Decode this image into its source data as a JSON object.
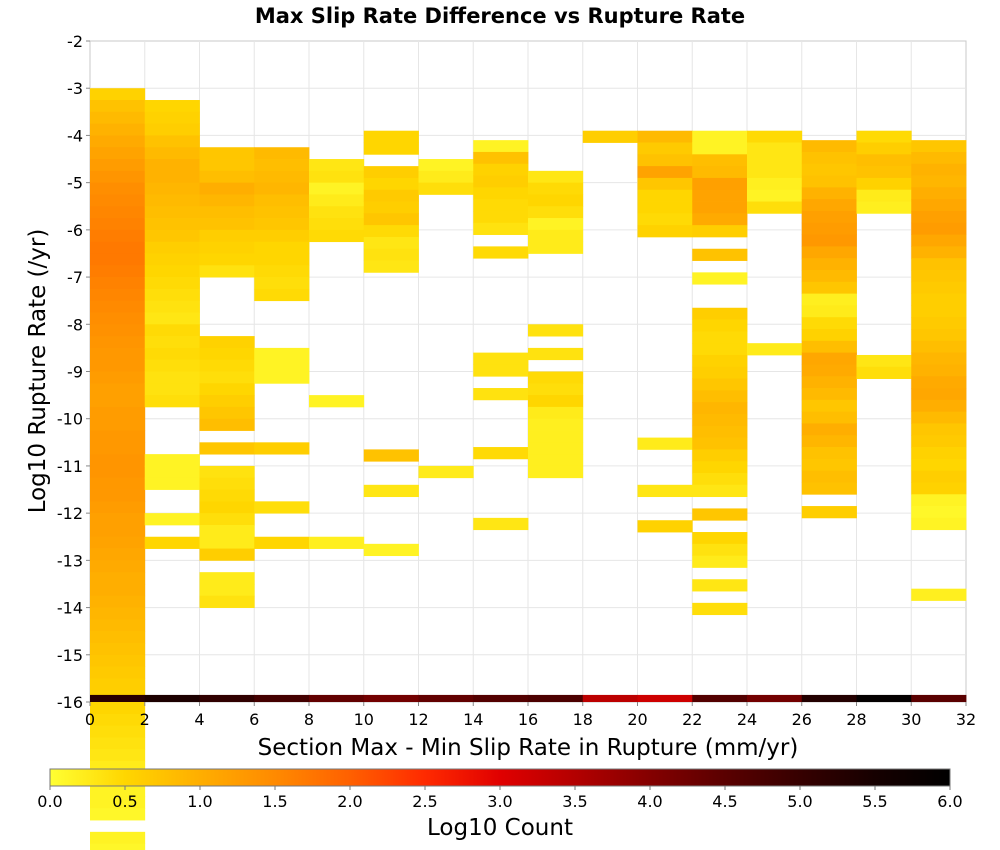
{
  "chart_data": {
    "type": "heatmap",
    "title": "Max Slip Rate Difference vs Rupture Rate",
    "xlabel": "Section Max - Min Slip Rate in Rupture (mm/yr)",
    "ylabel": "Log10 Rupture Rate (/yr)",
    "xlim": [
      0,
      32
    ],
    "ylim": [
      -16,
      -2
    ],
    "x_ticks": [
      "0",
      "2",
      "4",
      "6",
      "8",
      "10",
      "12",
      "14",
      "16",
      "18",
      "20",
      "22",
      "24",
      "26",
      "28",
      "30",
      "32"
    ],
    "y_ticks": [
      "-2",
      "-3",
      "-4",
      "-5",
      "-6",
      "-7",
      "-8",
      "-9",
      "-10",
      "-11",
      "-12",
      "-13",
      "-14",
      "-15",
      "-16"
    ],
    "x_bin_width": 2,
    "y_bin_height": 0.25,
    "grid": true,
    "colorbar": {
      "label": "Log10 Count",
      "range": [
        0,
        6
      ],
      "ticks": [
        "0.0",
        "0.5",
        "1.0",
        "1.5",
        "2.0",
        "2.5",
        "3.0",
        "3.5",
        "4.0",
        "4.5",
        "5.0",
        "5.5",
        "6.0"
      ],
      "colors": [
        "#ffff33",
        "#ffd600",
        "#ffae00",
        "#ff8a00",
        "#ff6000",
        "#ff2a00",
        "#e00000",
        "#b30000",
        "#840000",
        "#5a0000",
        "#360000",
        "#160000",
        "#000000"
      ]
    },
    "columns": [
      {
        "x": 0,
        "y_top": -3.0,
        "values": [
          0.55,
          0.75,
          0.85,
          0.95,
          1.05,
          1.15,
          1.25,
          1.35,
          1.45,
          1.5,
          1.55,
          1.6,
          1.65,
          1.7,
          1.7,
          1.65,
          1.6,
          1.55,
          1.5,
          1.45,
          1.4,
          1.35,
          1.3,
          1.3,
          1.25,
          1.2,
          1.2,
          1.25,
          1.25,
          1.3,
          1.3,
          1.35,
          1.35,
          1.3,
          1.3,
          1.25,
          1.2,
          1.2,
          1.15,
          1.1,
          1.05,
          1.0,
          1.0,
          0.95,
          0.9,
          0.85,
          0.8,
          0.75,
          0.7,
          0.65,
          0.6,
          0.55,
          0.5,
          0.45,
          0.4,
          0.35,
          0.3,
          0.25,
          0.2,
          0.15,
          0.15,
          0.1,
          null,
          0.15,
          0.1,
          0.1
        ]
      },
      {
        "x": 2,
        "y_top": -3.25,
        "values": [
          0.5,
          0.55,
          0.6,
          0.75,
          0.85,
          0.95,
          0.95,
          0.9,
          0.85,
          0.8,
          0.75,
          0.7,
          0.6,
          0.55,
          0.5,
          0.45,
          0.4,
          0.35,
          0.3,
          0.45,
          0.4,
          0.45,
          0.4,
          0.35,
          0.35,
          0.4,
          null,
          null,
          null,
          null,
          0.15,
          0.15,
          0.15,
          null,
          null,
          0.15,
          null,
          0.5,
          null,
          null
        ]
      },
      {
        "x": 4,
        "y_top": -4.25,
        "values": [
          0.7,
          0.7,
          0.8,
          1.0,
          0.9,
          0.8,
          0.75,
          0.6,
          0.55,
          0.5,
          0.35,
          null,
          null,
          null,
          null,
          null,
          0.55,
          0.5,
          0.45,
          0.4,
          0.5,
          0.6,
          0.7,
          0.8,
          null,
          0.7,
          null,
          0.35,
          0.4,
          0.45,
          0.5,
          0.4,
          0.25,
          0.25,
          0.6,
          null,
          0.25,
          0.25,
          0.35
        ]
      },
      {
        "x": 6,
        "y_top": -4.25,
        "values": [
          0.85,
          0.8,
          0.85,
          0.9,
          0.8,
          0.75,
          0.7,
          0.6,
          0.5,
          0.5,
          0.45,
          0.4,
          0.45,
          null,
          null,
          null,
          null,
          0.15,
          0.15,
          0.15,
          null,
          null,
          null,
          null,
          null,
          0.6,
          null,
          null,
          null,
          null,
          0.4,
          null,
          null,
          0.5
        ]
      },
      {
        "x": 8,
        "y_top": -4.5,
        "values": [
          0.3,
          0.35,
          0.15,
          0.25,
          0.35,
          0.4,
          0.45,
          null,
          null,
          null,
          null,
          null,
          null,
          null,
          null,
          null,
          null,
          null,
          null,
          null,
          0.15,
          null,
          null,
          null,
          null,
          null,
          null,
          null,
          null,
          null,
          null,
          null,
          0.2
        ]
      },
      {
        "x": 10,
        "y_top": -3.9,
        "values": [
          0.5,
          0.5,
          null,
          0.6,
          0.5,
          0.65,
          0.6,
          0.7,
          0.45,
          0.3,
          0.35,
          0.3,
          null,
          null,
          null,
          null,
          null,
          null,
          null,
          null,
          null,
          null,
          null,
          null,
          null,
          null,
          null,
          0.75,
          null,
          null,
          0.3,
          null,
          null,
          null,
          null,
          0.15
        ]
      },
      {
        "x": 12,
        "y_top": -4.5,
        "values": [
          0.15,
          0.25,
          0.4,
          null,
          null,
          null,
          null,
          null,
          null,
          null,
          null,
          null,
          null,
          null,
          null,
          null,
          null,
          null,
          null,
          null,
          null,
          null,
          null,
          null,
          null,
          null,
          0.25
        ]
      },
      {
        "x": 14,
        "y_top": -4.1,
        "values": [
          0.15,
          0.75,
          0.55,
          0.6,
          0.5,
          0.45,
          0.45,
          0.35,
          null,
          0.45,
          null,
          null,
          null,
          null,
          null,
          null,
          null,
          null,
          0.35,
          0.35,
          null,
          0.35,
          null,
          null,
          null,
          null,
          0.45,
          null,
          null,
          null,
          null,
          null,
          0.3
        ]
      },
      {
        "x": 16,
        "y_top": -4.75,
        "values": [
          0.3,
          0.45,
          0.5,
          0.4,
          0.15,
          0.25,
          0.25,
          null,
          null,
          null,
          null,
          null,
          null,
          0.35,
          null,
          0.35,
          null,
          0.45,
          0.4,
          0.5,
          0.25,
          0.2,
          0.2,
          0.2,
          0.2,
          0.2
        ]
      },
      {
        "x": 18,
        "y_top": -3.9,
        "values": [
          0.6
        ]
      },
      {
        "x": 20,
        "y_top": -3.9,
        "values": [
          0.85,
          0.65,
          0.75,
          1.15,
          0.7,
          0.5,
          0.5,
          0.45,
          0.55,
          null,
          null,
          null,
          null,
          null,
          null,
          null,
          null,
          null,
          null,
          null,
          null,
          null,
          null,
          null,
          null,
          null,
          0.25,
          null,
          null,
          null,
          0.3,
          null,
          null,
          0.55
        ]
      },
      {
        "x": 22,
        "y_top": -3.9,
        "values": [
          0.15,
          0.15,
          0.8,
          0.85,
          1.2,
          1.15,
          1.15,
          1.05,
          0.6,
          null,
          0.75,
          null,
          0.15,
          null,
          null,
          0.6,
          0.5,
          0.45,
          0.45,
          0.55,
          0.6,
          0.7,
          0.8,
          0.9,
          0.85,
          0.8,
          0.75,
          0.6,
          0.5,
          0.4,
          0.3,
          null,
          0.7,
          null,
          0.5,
          0.35,
          0.25,
          null,
          0.3,
          null,
          0.4
        ]
      },
      {
        "x": 24,
        "y_top": -3.9,
        "values": [
          0.45,
          0.3,
          0.3,
          0.3,
          0.2,
          0.15,
          0.4,
          null,
          null,
          null,
          null,
          null,
          null,
          null,
          null,
          null,
          null,
          null,
          0.25
        ]
      },
      {
        "x": 26,
        "y_top": -4.1,
        "values": [
          0.85,
          0.75,
          0.7,
          0.75,
          0.95,
          1.1,
          1.2,
          1.25,
          1.3,
          1.1,
          0.95,
          0.85,
          0.7,
          0.2,
          0.25,
          0.45,
          0.55,
          0.8,
          1.1,
          1.05,
          0.95,
          0.85,
          0.7,
          0.8,
          1.0,
          0.9,
          0.75,
          0.7,
          0.8,
          0.75,
          null,
          0.6
        ]
      },
      {
        "x": 28,
        "y_top": -3.9,
        "values": [
          0.45,
          0.6,
          0.8,
          0.75,
          0.55,
          0.25,
          0.2,
          null,
          null,
          null,
          null,
          null,
          null,
          null,
          null,
          null,
          null,
          null,
          null,
          0.3,
          0.4
        ]
      },
      {
        "x": 30,
        "y_top": -4.1,
        "values": [
          0.7,
          0.85,
          0.95,
          0.9,
          1.0,
          1.1,
          1.2,
          1.25,
          1.1,
          0.95,
          0.75,
          0.7,
          0.65,
          0.6,
          0.6,
          0.65,
          0.7,
          0.8,
          0.9,
          0.95,
          1.05,
          1.1,
          1.0,
          0.85,
          0.7,
          0.65,
          0.55,
          0.5,
          0.6,
          0.55,
          0.15,
          0.1,
          0.15,
          null,
          null,
          null,
          null,
          null,
          0.2
        ]
      }
    ],
    "bottom_row": {
      "y_from": -16.0,
      "y_to": -15.85,
      "values": [
        5.2,
        5.4,
        5.1,
        4.8,
        4.4,
        4.2,
        4.4,
        4.6,
        4.7,
        3.4,
        3.2,
        4.6,
        4.2,
        5.3,
        5.9,
        4.5
      ]
    }
  }
}
